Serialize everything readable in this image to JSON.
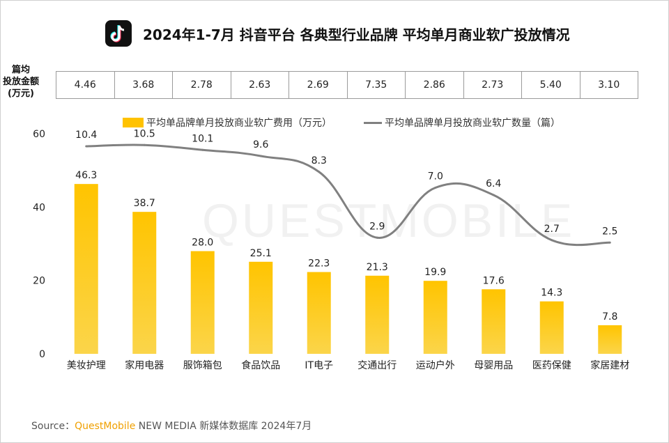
{
  "header": {
    "title": "2024年1-7月 抖音平台 各典型行业品牌 平均单月商业软广投放情况",
    "logo_icon": "tiktok-logo-icon"
  },
  "table": {
    "row_label_lines": [
      "篇均",
      "投放金额",
      "(万元)"
    ],
    "values": [
      "4.46",
      "3.68",
      "2.78",
      "2.63",
      "2.69",
      "7.35",
      "2.86",
      "2.73",
      "5.40",
      "3.10"
    ]
  },
  "chart_data": {
    "type": "bar",
    "categories": [
      "美妆护理",
      "家用电器",
      "服饰箱包",
      "食品饮品",
      "IT电子",
      "交通出行",
      "运动户外",
      "母婴用品",
      "医药保健",
      "家居建材"
    ],
    "series": [
      {
        "name": "平均单品牌单月投放商业软广费用（万元）",
        "type": "bar",
        "values": [
          46.3,
          38.7,
          28.0,
          25.1,
          22.3,
          21.3,
          19.9,
          17.6,
          14.3,
          7.8
        ],
        "labels": [
          "46.3",
          "38.7",
          "28.0",
          "25.1",
          "22.3",
          "21.3",
          "19.9",
          "17.6",
          "14.3",
          "7.8"
        ],
        "color": "#ffc200"
      },
      {
        "name": "平均单品牌单月投放商业软广数量（篇）",
        "type": "line",
        "values": [
          10.4,
          10.5,
          10.1,
          9.6,
          8.3,
          2.9,
          7.0,
          6.4,
          2.7,
          2.5
        ],
        "labels": [
          "10.4",
          "10.5",
          "10.1",
          "9.6",
          "8.3",
          "2.9",
          "7.0",
          "6.4",
          "2.7",
          "2.5"
        ],
        "color": "#808080"
      }
    ],
    "y_ticks": [
      "0",
      "20",
      "40",
      "60"
    ],
    "ylim": [
      0,
      60
    ],
    "grid": false,
    "legend_position": "top-center"
  },
  "footer": {
    "source_prefix": "Source：",
    "source_brand": "QuestMobile",
    "source_suffix": " NEW MEDIA 新媒体数据库 2024年7月"
  },
  "watermark": "QUESTMOBILE"
}
